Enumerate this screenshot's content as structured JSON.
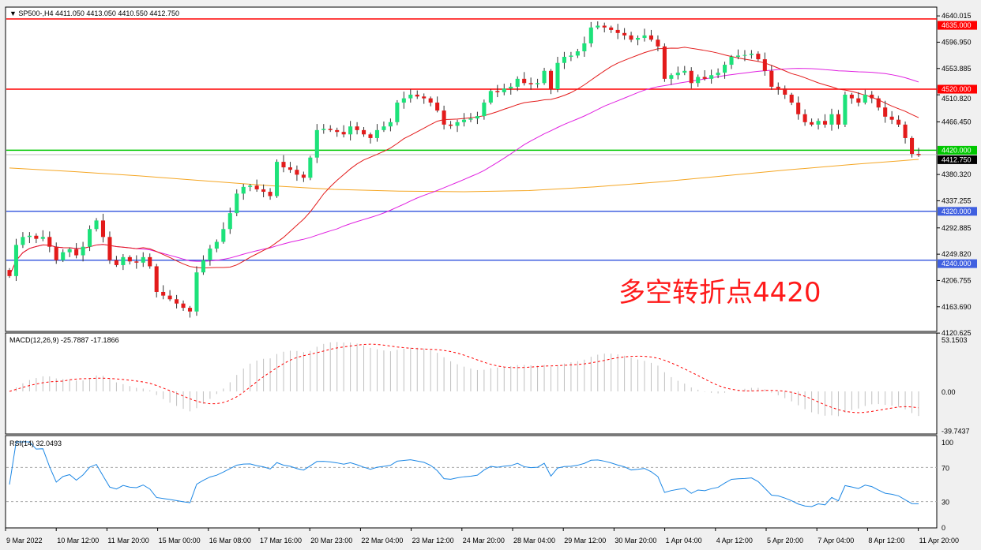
{
  "header": {
    "symbol": "SP500-,H4",
    "ohlc": "4411.050 4413.050 4410.550 4412.750"
  },
  "annotation": "多空转折点4420",
  "colors": {
    "bull": "#1de27a",
    "bear": "#e31b1b",
    "ma_fast": "#e31b1b",
    "ma_mid": "#e020e0",
    "ma_long": "#f5a623",
    "rsi": "#1e88e5",
    "macd_signal": "#ff0000",
    "macd_hist": "#c0c0c0"
  },
  "chart_data": [
    {
      "type": "candlestick",
      "title": "SP500-,H4",
      "price_axis": {
        "ticks": [
          "4640.015",
          "4596.950",
          "4553.885",
          "4510.820",
          "4466.450",
          "4380.320",
          "4337.255",
          "4292.885",
          "4249.820",
          "4206.755",
          "4163.690",
          "4120.625"
        ],
        "current": "4412.750"
      },
      "levels": [
        {
          "value": 4635,
          "label": "4635.000",
          "color": "#ff0000"
        },
        {
          "value": 4520,
          "label": "4520.000",
          "color": "#ff0000"
        },
        {
          "value": 4420,
          "label": "4420.000",
          "color": "#00c800"
        },
        {
          "value": 4320,
          "label": "4320.000",
          "color": "#4060e0"
        },
        {
          "value": 4240,
          "label": "4240.000",
          "color": "#4060e0"
        }
      ],
      "closes": [
        4214,
        4265,
        4278,
        4280,
        4275,
        4278,
        4262,
        4240,
        4253,
        4258,
        4248,
        4262,
        4291,
        4305,
        4278,
        4240,
        4232,
        4245,
        4238,
        4236,
        4245,
        4230,
        4188,
        4182,
        4176,
        4169,
        4162,
        4156,
        4220,
        4240,
        4259,
        4270,
        4291,
        4317,
        4349,
        4360,
        4362,
        4356,
        4352,
        4345,
        4401,
        4392,
        4388,
        4380,
        4375,
        4408,
        4453,
        4455,
        4453,
        4450,
        4446,
        4459,
        4453,
        4446,
        4440,
        4453,
        4459,
        4466,
        4498,
        4505,
        4511,
        4508,
        4505,
        4498,
        4485,
        4462,
        4460,
        4466,
        4470,
        4472,
        4476,
        4498,
        4517,
        4515,
        4521,
        4524,
        4537,
        4530,
        4528,
        4530,
        4550,
        4520,
        4563,
        4573,
        4575,
        4582,
        4595,
        4621,
        4624,
        4621,
        4617,
        4612,
        4608,
        4601,
        4604,
        4608,
        4601,
        4590,
        4537,
        4543,
        4547,
        4550,
        4530,
        4540,
        4537,
        4543,
        4547,
        4560,
        4573,
        4575,
        4576,
        4578,
        4569,
        4550,
        4524,
        4521,
        4511,
        4498,
        4479,
        4466,
        4462,
        4468,
        4462,
        4479,
        4462,
        4511,
        4505,
        4498,
        4511,
        4505,
        4490,
        4475,
        4470,
        4462,
        4440,
        4414,
        4412
      ],
      "ma_long": [
        4391,
        4385,
        4378,
        4370,
        4362,
        4356,
        4353,
        4352,
        4354,
        4360,
        4368,
        4378,
        4388,
        4397,
        4405
      ],
      "time_axis": [
        "9 Mar 2022",
        "10 Mar 12:00",
        "11 Mar 20:00",
        "15 Mar 00:00",
        "16 Mar 08:00",
        "17 Mar 16:00",
        "20 Mar 23:00",
        "22 Mar 04:00",
        "23 Mar 12:00",
        "24 Mar 20:00",
        "28 Mar 04:00",
        "29 Mar 12:00",
        "30 Mar 20:00",
        "1 Apr 04:00",
        "4 Apr 12:00",
        "5 Apr 20:00",
        "7 Apr 04:00",
        "8 Apr 12:00",
        "11 Apr 20:00"
      ]
    },
    {
      "type": "bar",
      "title": "MACD(12,26,9) -25.7887 -17.1866",
      "ticks": [
        "53.1503",
        "0.00",
        "-39.7437"
      ],
      "ylim": [
        -39.7437,
        53.1503
      ]
    },
    {
      "type": "line",
      "title": "RSI(14) 32.0493",
      "ticks": [
        "100",
        "70",
        "30",
        "0"
      ],
      "ylim": [
        0,
        100
      ],
      "levels": [
        70,
        30
      ]
    }
  ]
}
